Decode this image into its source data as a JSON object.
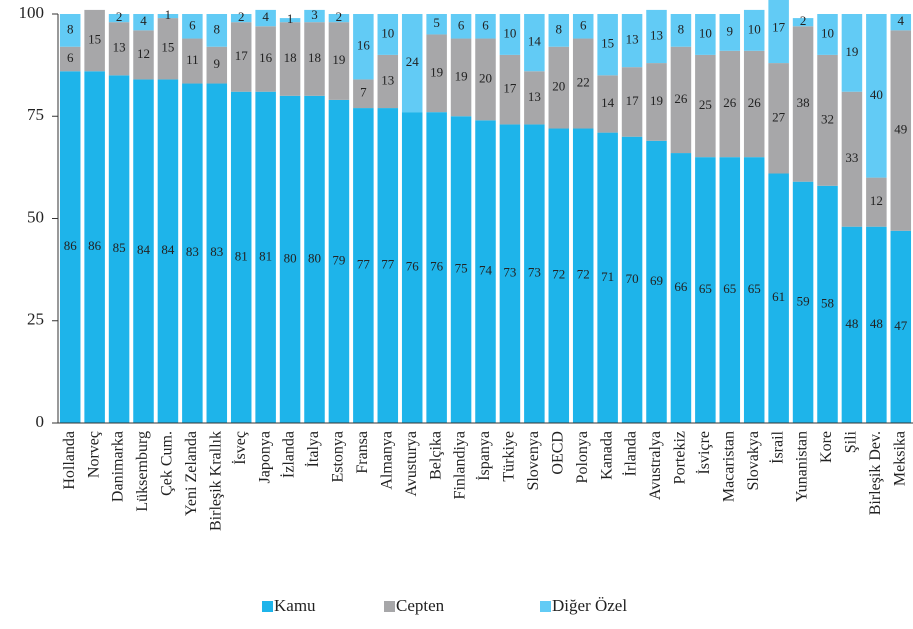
{
  "chart_data": {
    "type": "stacked_bar",
    "categories": [
      "Hollanda",
      "Norveç",
      "Danimarka",
      "Lüksemburg",
      "Çek Cum.",
      "Yeni Zelanda",
      "Birleşik Krallık",
      "İsveç",
      "Japonya",
      "İzlanda",
      "İtalya",
      "Estonya",
      "Fransa",
      "Almanya",
      "Avusturya",
      "Belçika",
      "Finlandiya",
      "İspanya",
      "Türkiye",
      "Slovenya",
      "OECD",
      "Polonya",
      "Kanada",
      "İrlanda",
      "Avustralya",
      "Portekiz",
      "İsviçre",
      "Macaristan",
      "Slovakya",
      "İsrail",
      "Yunanistan",
      "Kore",
      "Şili",
      "Birleşik Dev.",
      "Meksika"
    ],
    "series": [
      {
        "name": "Kamu",
        "color": "#1eb4ea",
        "values": [
          86,
          86,
          85,
          84,
          84,
          83,
          83,
          81,
          81,
          80,
          80,
          79,
          77,
          77,
          76,
          76,
          75,
          74,
          73,
          73,
          72,
          72,
          71,
          70,
          69,
          66,
          65,
          65,
          65,
          61,
          59,
          58,
          48,
          48,
          47
        ]
      },
      {
        "name": "Cepten",
        "color": "#a7a7a9",
        "values": [
          6,
          15,
          13,
          12,
          15,
          11,
          9,
          17,
          16,
          18,
          18,
          19,
          7,
          13,
          null,
          19,
          19,
          20,
          17,
          13,
          20,
          22,
          14,
          17,
          19,
          26,
          25,
          26,
          26,
          27,
          38,
          32,
          33,
          12,
          49
        ]
      },
      {
        "name": "Diğer Özel",
        "color": "#62cbf5",
        "values": [
          8,
          null,
          2,
          4,
          1,
          6,
          8,
          2,
          4,
          1,
          3,
          2,
          16,
          10,
          24,
          5,
          6,
          6,
          10,
          14,
          8,
          6,
          15,
          13,
          13,
          8,
          10,
          9,
          10,
          17,
          2,
          10,
          19,
          40,
          4
        ]
      }
    ],
    "ylim": [
      0,
      100
    ],
    "yticks": [
      0,
      25,
      50,
      75,
      100
    ]
  }
}
